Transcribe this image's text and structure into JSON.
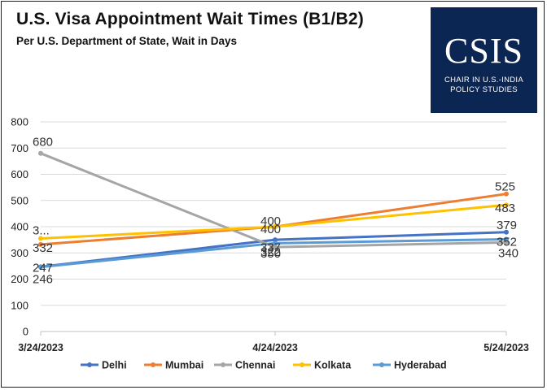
{
  "header": {
    "title": "U.S. Visa Appointment Wait Times (B1/B2)",
    "subtitle": "Per U.S. Department of State, Wait in Days"
  },
  "logo": {
    "word": "CSIS",
    "tagline": "CHAIR IN U.S.-INDIA POLICY STUDIES"
  },
  "chart_data": {
    "type": "line",
    "title": "U.S. Visa Appointment Wait Times (B1/B2)",
    "subtitle": "Per U.S. Department of State, Wait in Days",
    "x": [
      "3/24/2023",
      "4/24/2023",
      "5/24/2023"
    ],
    "ylim": [
      0,
      800
    ],
    "yticks": [
      0,
      100,
      200,
      300,
      400,
      500,
      600,
      700,
      800
    ],
    "grid": true,
    "legend": "bottom",
    "series": [
      {
        "name": "Delhi",
        "color": "#4472c4",
        "values": [
          247,
          350,
          379
        ],
        "labels": [
          "247",
          "350",
          "379"
        ]
      },
      {
        "name": "Mumbai",
        "color": "#ed7d31",
        "values": [
          332,
          400,
          525
        ],
        "labels": [
          "332",
          "400",
          "525"
        ]
      },
      {
        "name": "Chennai",
        "color": "#a5a5a5",
        "values": [
          680,
          322,
          340
        ],
        "labels": [
          "680",
          "322",
          "340"
        ]
      },
      {
        "name": "Kolkata",
        "color": "#ffc000",
        "values": [
          355,
          400,
          483
        ],
        "labels": [
          "3...",
          "400",
          "483"
        ]
      },
      {
        "name": "Hyderabad",
        "color": "#5b9bd5",
        "values": [
          246,
          337,
          352
        ],
        "labels": [
          "246",
          "337",
          "352"
        ]
      }
    ]
  }
}
